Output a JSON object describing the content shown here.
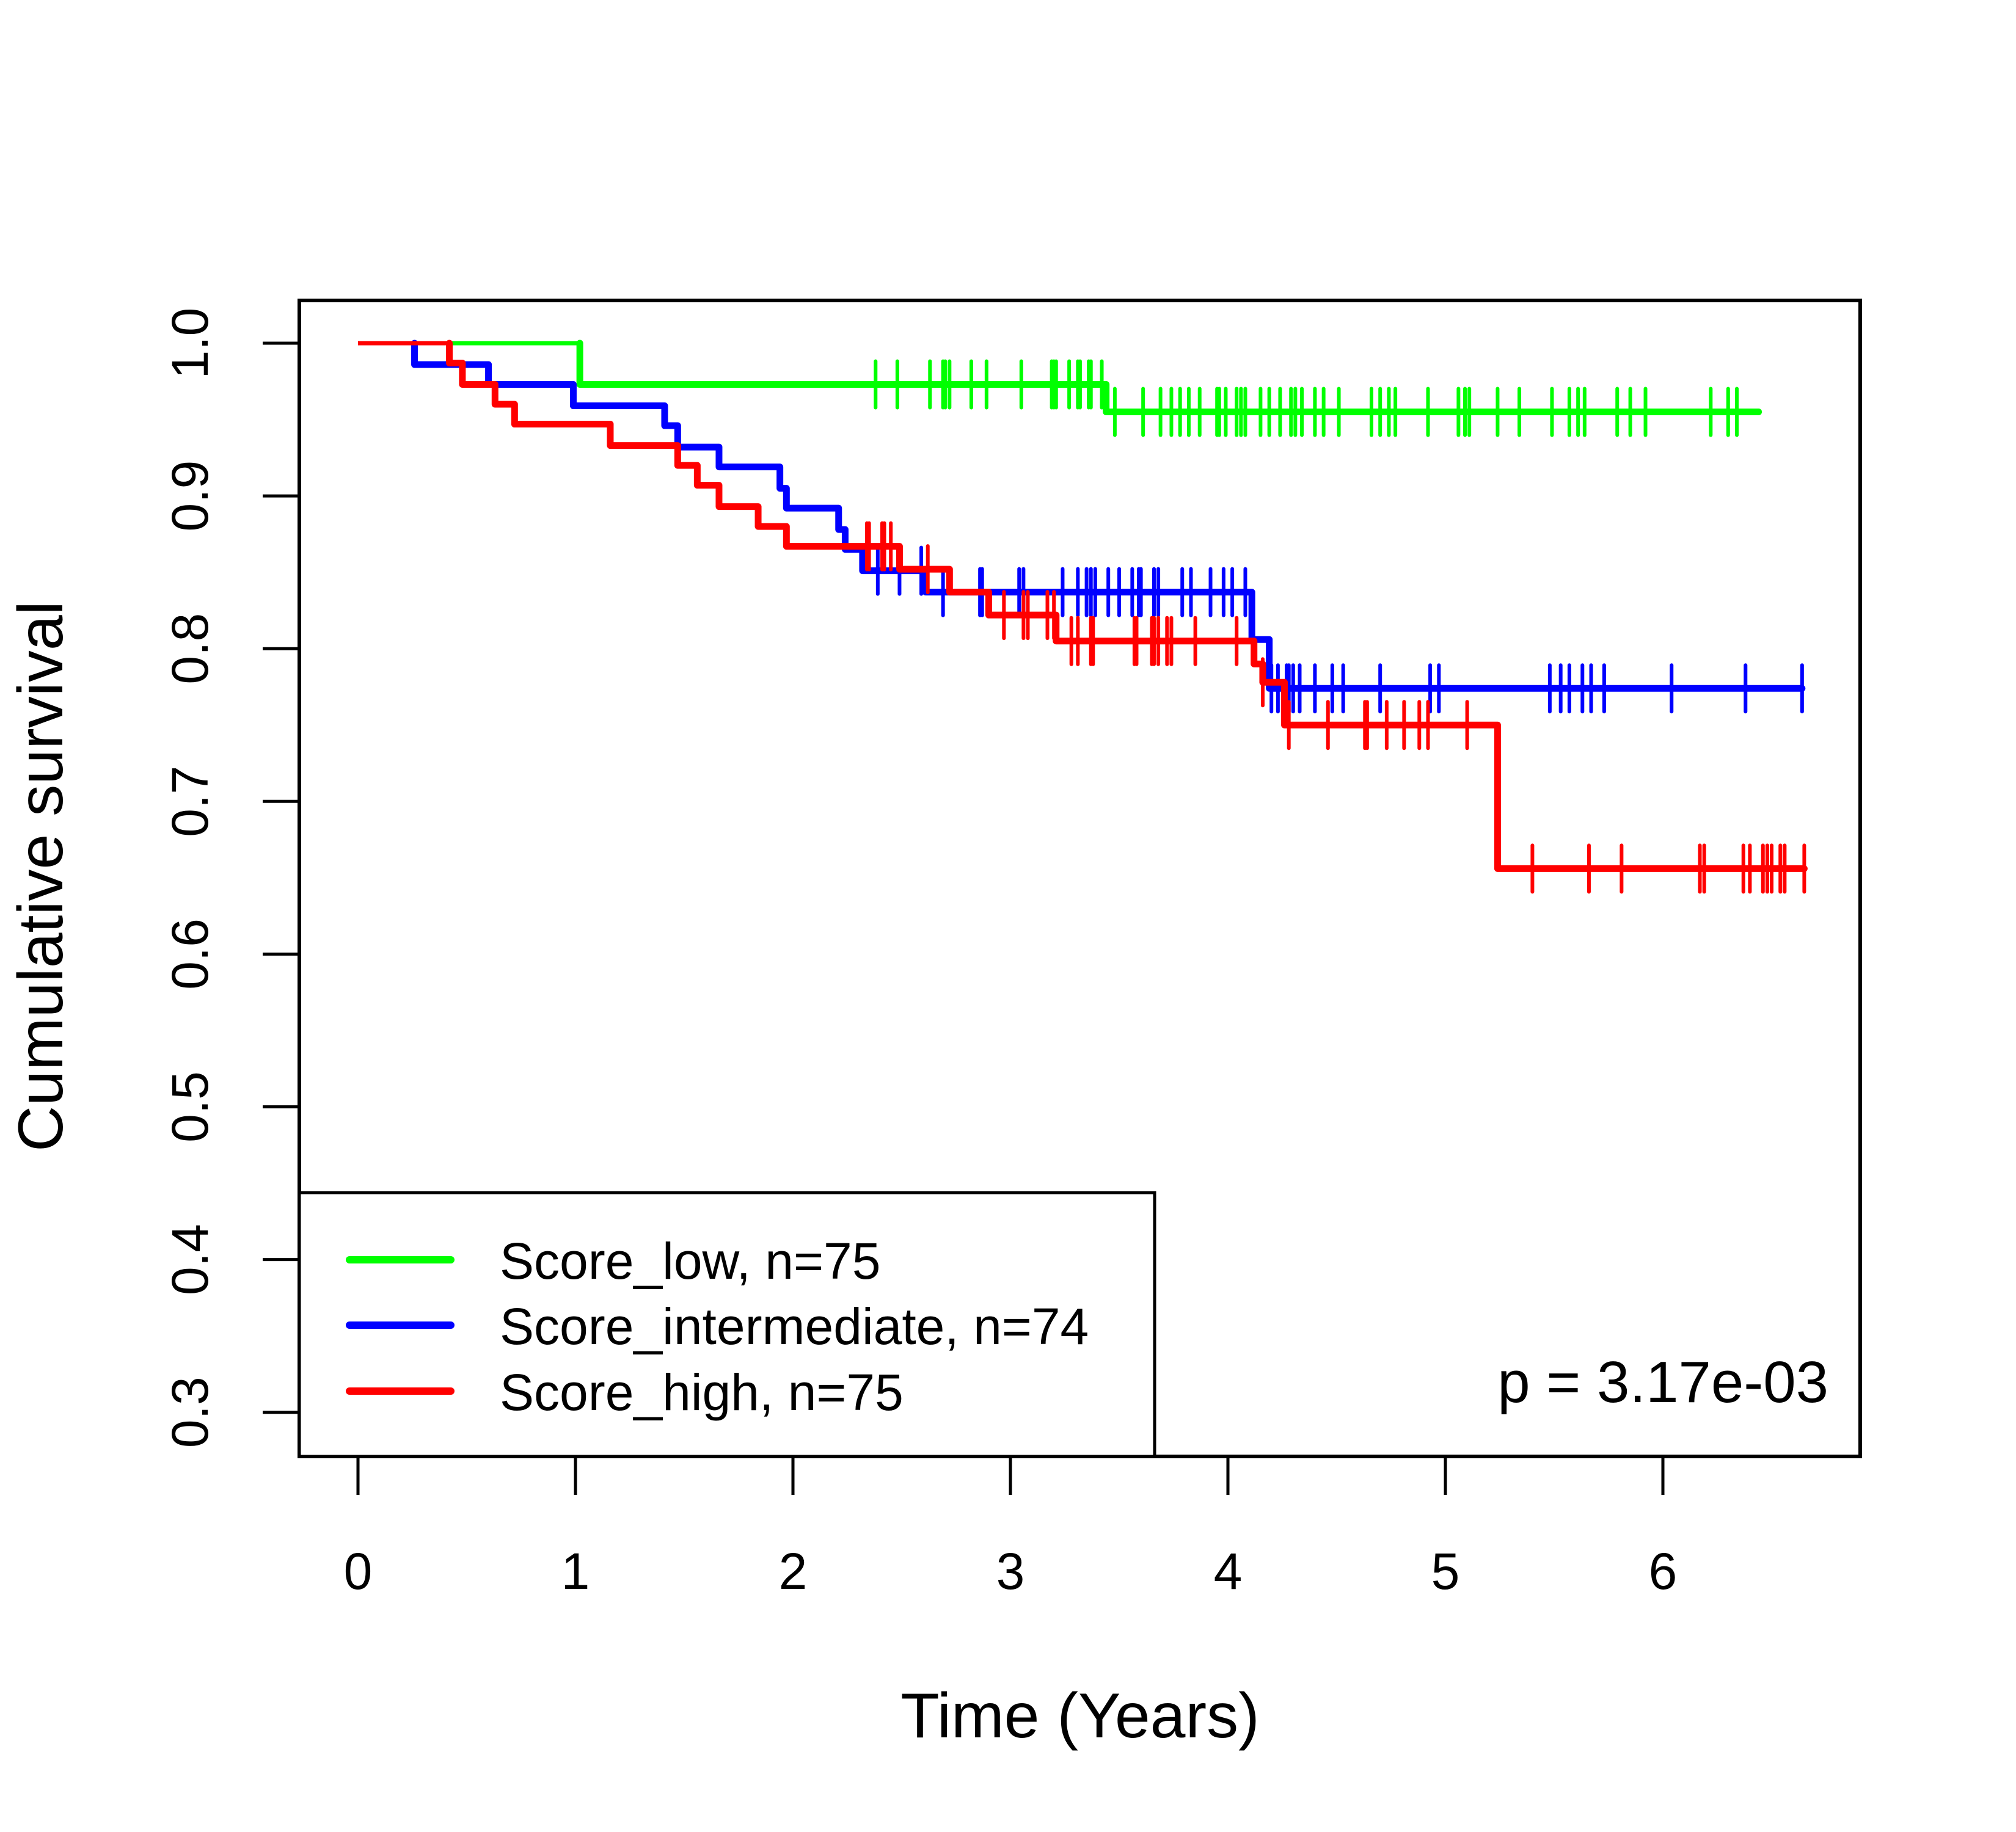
{
  "chart_data": {
    "type": "line",
    "subtype": "kaplan-meier",
    "title": "",
    "xlabel": "Time (Years)",
    "ylabel": "Cumulative survival",
    "xlim": [
      0,
      6.65
    ],
    "ylim": [
      0.3,
      1.0
    ],
    "x_ticks": [
      0,
      1,
      2,
      3,
      4,
      5,
      6
    ],
    "x_tick_labels": [
      "0",
      "1",
      "2",
      "3",
      "4",
      "5",
      "6"
    ],
    "y_ticks": [
      0.3,
      0.4,
      0.5,
      0.6,
      0.7,
      0.8,
      0.9,
      1.0
    ],
    "y_tick_labels": [
      "0.3",
      "0.4",
      "0.5",
      "0.6",
      "0.7",
      "0.8",
      "0.9",
      "1.0"
    ],
    "grid": false,
    "legend_position": "bottom-left",
    "annotation": "p = 3.17e-03",
    "series": [
      {
        "name": "Score_low, n=75",
        "color": "#00ff00",
        "start": 1.0,
        "end_time": 6.44,
        "steps": [
          {
            "t": 1.02,
            "s": 0.973
          },
          {
            "t": 3.44,
            "s": 0.955
          }
        ],
        "censor_times": [
          2.38,
          2.48,
          2.63,
          2.69,
          2.7,
          2.72,
          2.82,
          2.89,
          3.05,
          3.19,
          3.2,
          3.21,
          3.27,
          3.31,
          3.32,
          3.36,
          3.37,
          3.42,
          3.48,
          3.61,
          3.69,
          3.74,
          3.78,
          3.82,
          3.87,
          3.95,
          3.96,
          3.99,
          4.04,
          4.06,
          4.08,
          4.15,
          4.19,
          4.24,
          4.29,
          4.31,
          4.34,
          4.4,
          4.44,
          4.51,
          4.66,
          4.7,
          4.74,
          4.77,
          4.92,
          5.06,
          5.09,
          5.11,
          5.24,
          5.34,
          5.49,
          5.57,
          5.61,
          5.64,
          5.79,
          5.85,
          5.92,
          6.22,
          6.3,
          6.34
        ]
      },
      {
        "name": "Score_intermediate, n=74",
        "color": "#0000ff",
        "start": 1.0,
        "end_time": 6.64,
        "steps": [
          {
            "t": 0.26,
            "s": 0.986
          },
          {
            "t": 0.6,
            "s": 0.973
          },
          {
            "t": 0.99,
            "s": 0.959
          },
          {
            "t": 1.41,
            "s": 0.946
          },
          {
            "t": 1.47,
            "s": 0.932
          },
          {
            "t": 1.66,
            "s": 0.919
          },
          {
            "t": 1.94,
            "s": 0.905
          },
          {
            "t": 1.97,
            "s": 0.892
          },
          {
            "t": 2.21,
            "s": 0.878
          },
          {
            "t": 2.24,
            "s": 0.865
          },
          {
            "t": 2.32,
            "s": 0.851
          },
          {
            "t": 2.61,
            "s": 0.837
          },
          {
            "t": 4.11,
            "s": 0.806
          },
          {
            "t": 4.19,
            "s": 0.774
          }
        ],
        "censor_times": [
          2.39,
          2.49,
          2.59,
          2.69,
          2.86,
          2.87,
          3.04,
          3.06,
          3.24,
          3.31,
          3.35,
          3.37,
          3.39,
          3.45,
          3.5,
          3.56,
          3.59,
          3.6,
          3.66,
          3.68,
          3.79,
          3.83,
          3.92,
          3.98,
          4.02,
          4.08,
          4.2,
          4.23,
          4.27,
          4.28,
          4.3,
          4.33,
          4.4,
          4.48,
          4.53,
          4.7,
          4.93,
          4.97,
          5.48,
          5.53,
          5.57,
          5.63,
          5.67,
          5.73,
          6.04,
          6.38,
          6.64
        ]
      },
      {
        "name": "Score_high, n=75",
        "color": "#ff0000",
        "start": 1.0,
        "end_time": 6.65,
        "steps": [
          {
            "t": 0.42,
            "s": 0.987
          },
          {
            "t": 0.48,
            "s": 0.973
          },
          {
            "t": 0.63,
            "s": 0.96
          },
          {
            "t": 0.72,
            "s": 0.947
          },
          {
            "t": 1.16,
            "s": 0.933
          },
          {
            "t": 1.47,
            "s": 0.92
          },
          {
            "t": 1.56,
            "s": 0.907
          },
          {
            "t": 1.66,
            "s": 0.893
          },
          {
            "t": 1.84,
            "s": 0.88
          },
          {
            "t": 1.97,
            "s": 0.867
          },
          {
            "t": 2.49,
            "s": 0.852
          },
          {
            "t": 2.72,
            "s": 0.837
          },
          {
            "t": 2.9,
            "s": 0.822
          },
          {
            "t": 3.21,
            "s": 0.805
          },
          {
            "t": 4.12,
            "s": 0.79
          },
          {
            "t": 4.16,
            "s": 0.778
          },
          {
            "t": 4.26,
            "s": 0.75
          },
          {
            "t": 5.24,
            "s": 0.656
          }
        ],
        "censor_times": [
          2.34,
          2.35,
          2.41,
          2.42,
          2.45,
          2.62,
          2.97,
          3.06,
          3.08,
          3.17,
          3.2,
          3.28,
          3.31,
          3.37,
          3.38,
          3.57,
          3.58,
          3.65,
          3.66,
          3.68,
          3.72,
          3.74,
          3.85,
          4.04,
          4.16,
          4.28,
          4.46,
          4.63,
          4.64,
          4.73,
          4.81,
          4.88,
          4.92,
          5.1,
          5.4,
          5.66,
          5.81,
          6.17,
          6.19,
          6.37,
          6.4,
          6.46,
          6.48,
          6.5,
          6.54,
          6.56,
          6.65
        ]
      }
    ]
  },
  "legend": {
    "items": [
      {
        "label": "Score_low, n=75",
        "color": "#00ff00"
      },
      {
        "label": "Score_intermediate, n=74",
        "color": "#0000ff"
      },
      {
        "label": "Score_high, n=75",
        "color": "#ff0000"
      }
    ]
  }
}
